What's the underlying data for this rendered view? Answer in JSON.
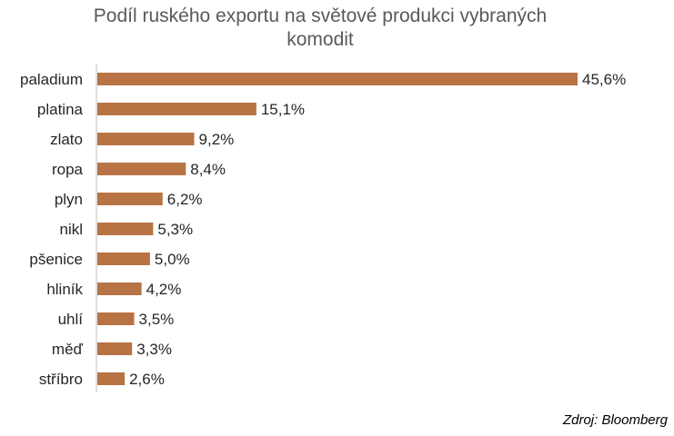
{
  "chart_data": {
    "type": "bar",
    "orientation": "horizontal",
    "title": "Podíl ruského exportu na světové produkci vybraných komodit",
    "title_lines": [
      "Podíl ruského exportu na světové produkci vybraných",
      "komodit"
    ],
    "categories": [
      "paladium",
      "platina",
      "zlato",
      "ropa",
      "plyn",
      "nikl",
      "pšenice",
      "hliník",
      "uhlí",
      "měď",
      "stříbro"
    ],
    "values": [
      45.6,
      15.1,
      9.2,
      8.4,
      6.2,
      5.3,
      5.0,
      4.2,
      3.5,
      3.3,
      2.6
    ],
    "value_labels": [
      "45,6%",
      "15,1%",
      "9,2%",
      "8,4%",
      "6,2%",
      "5,3%",
      "5,0%",
      "4,2%",
      "3,5%",
      "3,3%",
      "2,6%"
    ],
    "bar_color": "#B87344",
    "axis_line_color": "#BFBFBF",
    "xlim": [
      0,
      45.6
    ],
    "grid": false,
    "legend": "none",
    "source": "Zdroj: Bloomberg"
  }
}
